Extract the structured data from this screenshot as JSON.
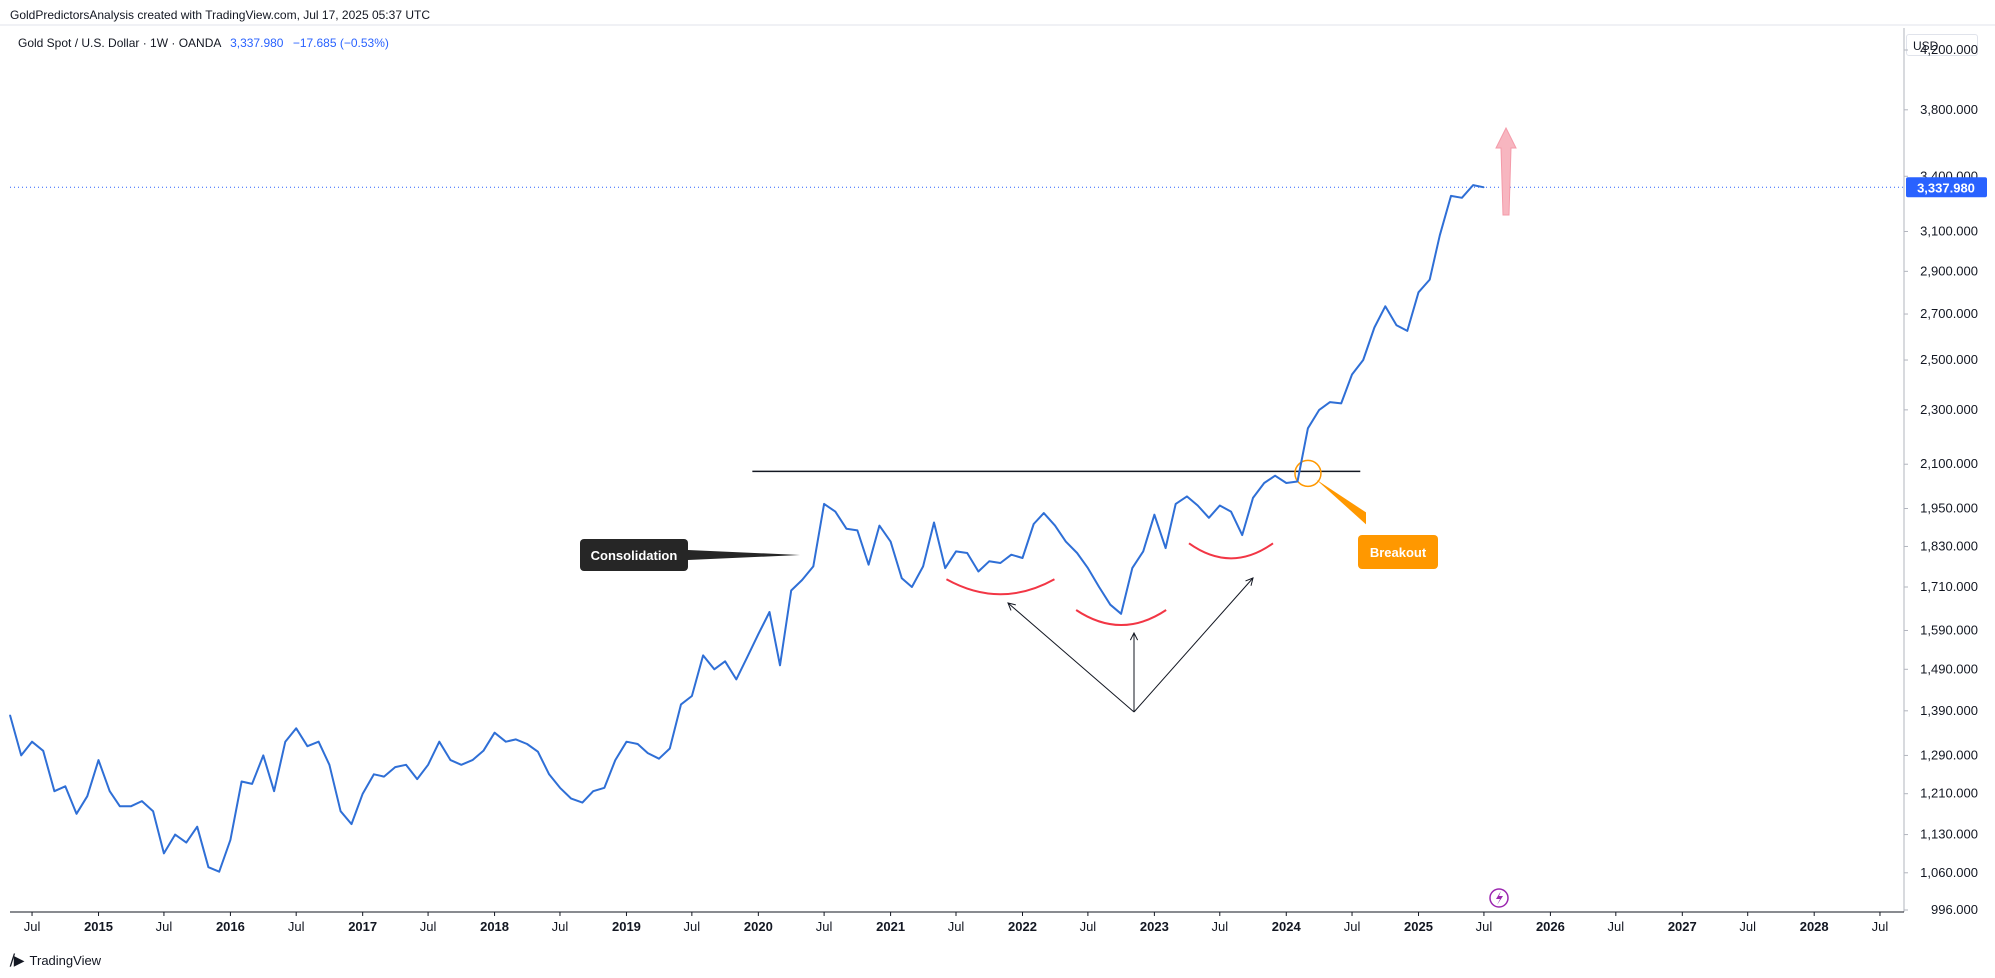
{
  "header": {
    "attribution": "GoldPredictorsAnalysis created with TradingView.com, Jul 17, 2025 05:37 UTC",
    "symbol": "Gold Spot / U.S. Dollar · 1W · OANDA",
    "last_price": "3,337.980",
    "change": "−17.685 (−0.53%)"
  },
  "currency_button": "USD",
  "footer": {
    "brand": "TradingView"
  },
  "colors": {
    "line": "#2f6fd6",
    "price_tag": "#2962ff",
    "arc": "#f23645",
    "breakout": "#ff9800",
    "label_bg": "#262626",
    "arrow_up": "#f7b6c0"
  },
  "annotations": {
    "consolidation": "Consolidation",
    "breakout": "Breakout"
  },
  "chart_data": {
    "type": "line",
    "title": "Gold Spot / U.S. Dollar · 1W · OANDA",
    "y_axis": {
      "scale": "log",
      "ticks": [
        996,
        1060,
        1130,
        1210,
        1290,
        1390,
        1490,
        1590,
        1710,
        1830,
        1950,
        2100,
        2300,
        2500,
        2700,
        2900,
        3100,
        3400,
        3800,
        4200
      ],
      "tick_labels": [
        "996.000",
        "1,060.000",
        "1,130.000",
        "1,210.000",
        "1,290.000",
        "1,390.000",
        "1,490.000",
        "1,590.000",
        "1,710.000",
        "1,830.000",
        "1,950.000",
        "2,100.000",
        "2,300.000",
        "2,500.000",
        "2,700.000",
        "2,900.000",
        "3,100.000",
        "3,400.000",
        "3,800.000",
        "4,200.000"
      ],
      "range": [
        996,
        4200
      ]
    },
    "x_axis": {
      "range": [
        "2014-05-01",
        "2028-08-31"
      ],
      "ticks": [
        {
          "date": "2014-07-01",
          "label": "Jul",
          "bold": false
        },
        {
          "date": "2015-01-01",
          "label": "2015",
          "bold": true
        },
        {
          "date": "2015-07-01",
          "label": "Jul",
          "bold": false
        },
        {
          "date": "2016-01-01",
          "label": "2016",
          "bold": true
        },
        {
          "date": "2016-07-01",
          "label": "Jul",
          "bold": false
        },
        {
          "date": "2017-01-01",
          "label": "2017",
          "bold": true
        },
        {
          "date": "2017-07-01",
          "label": "Jul",
          "bold": false
        },
        {
          "date": "2018-01-01",
          "label": "2018",
          "bold": true
        },
        {
          "date": "2018-07-01",
          "label": "Jul",
          "bold": false
        },
        {
          "date": "2019-01-01",
          "label": "2019",
          "bold": true
        },
        {
          "date": "2019-07-01",
          "label": "Jul",
          "bold": false
        },
        {
          "date": "2020-01-01",
          "label": "2020",
          "bold": true
        },
        {
          "date": "2020-07-01",
          "label": "Jul",
          "bold": false
        },
        {
          "date": "2021-01-01",
          "label": "2021",
          "bold": true
        },
        {
          "date": "2021-07-01",
          "label": "Jul",
          "bold": false
        },
        {
          "date": "2022-01-01",
          "label": "2022",
          "bold": true
        },
        {
          "date": "2022-07-01",
          "label": "Jul",
          "bold": false
        },
        {
          "date": "2023-01-01",
          "label": "2023",
          "bold": true
        },
        {
          "date": "2023-07-01",
          "label": "Jul",
          "bold": false
        },
        {
          "date": "2024-01-01",
          "label": "2024",
          "bold": true
        },
        {
          "date": "2024-07-01",
          "label": "Jul",
          "bold": false
        },
        {
          "date": "2025-01-01",
          "label": "2025",
          "bold": true
        },
        {
          "date": "2025-07-01",
          "label": "Jul",
          "bold": false
        },
        {
          "date": "2026-01-01",
          "label": "2026",
          "bold": true
        },
        {
          "date": "2026-07-01",
          "label": "Jul",
          "bold": false
        },
        {
          "date": "2027-01-01",
          "label": "2027",
          "bold": true
        },
        {
          "date": "2027-07-01",
          "label": "Jul",
          "bold": false
        },
        {
          "date": "2028-01-01",
          "label": "2028",
          "bold": true
        },
        {
          "date": "2028-07-01",
          "label": "Jul",
          "bold": false
        }
      ]
    },
    "series": [
      {
        "values": [
          [
            "2014-05-01",
            1380
          ],
          [
            "2014-06-01",
            1290
          ],
          [
            "2014-07-01",
            1320
          ],
          [
            "2014-08-01",
            1300
          ],
          [
            "2014-09-01",
            1215
          ],
          [
            "2014-10-01",
            1225
          ],
          [
            "2014-11-01",
            1170
          ],
          [
            "2014-12-01",
            1205
          ],
          [
            "2015-01-01",
            1280
          ],
          [
            "2015-02-01",
            1215
          ],
          [
            "2015-03-01",
            1185
          ],
          [
            "2015-04-01",
            1185
          ],
          [
            "2015-05-01",
            1195
          ],
          [
            "2015-06-01",
            1175
          ],
          [
            "2015-07-01",
            1095
          ],
          [
            "2015-08-01",
            1130
          ],
          [
            "2015-09-01",
            1115
          ],
          [
            "2015-10-01",
            1145
          ],
          [
            "2015-11-01",
            1070
          ],
          [
            "2015-12-01",
            1062
          ],
          [
            "2016-01-01",
            1120
          ],
          [
            "2016-02-01",
            1235
          ],
          [
            "2016-03-01",
            1230
          ],
          [
            "2016-04-01",
            1290
          ],
          [
            "2016-05-01",
            1215
          ],
          [
            "2016-06-01",
            1320
          ],
          [
            "2016-07-01",
            1350
          ],
          [
            "2016-08-01",
            1310
          ],
          [
            "2016-09-01",
            1320
          ],
          [
            "2016-10-01",
            1270
          ],
          [
            "2016-11-01",
            1175
          ],
          [
            "2016-12-01",
            1150
          ],
          [
            "2017-01-01",
            1210
          ],
          [
            "2017-02-01",
            1250
          ],
          [
            "2017-03-01",
            1245
          ],
          [
            "2017-04-01",
            1265
          ],
          [
            "2017-05-01",
            1270
          ],
          [
            "2017-06-01",
            1240
          ],
          [
            "2017-07-01",
            1270
          ],
          [
            "2017-08-01",
            1320
          ],
          [
            "2017-09-01",
            1280
          ],
          [
            "2017-10-01",
            1270
          ],
          [
            "2017-11-01",
            1280
          ],
          [
            "2017-12-01",
            1300
          ],
          [
            "2018-01-01",
            1340
          ],
          [
            "2018-02-01",
            1320
          ],
          [
            "2018-03-01",
            1325
          ],
          [
            "2018-04-01",
            1315
          ],
          [
            "2018-05-01",
            1298
          ],
          [
            "2018-06-01",
            1250
          ],
          [
            "2018-07-01",
            1222
          ],
          [
            "2018-08-01",
            1200
          ],
          [
            "2018-09-01",
            1192
          ],
          [
            "2018-10-01",
            1215
          ],
          [
            "2018-11-01",
            1222
          ],
          [
            "2018-12-01",
            1280
          ],
          [
            "2019-01-01",
            1320
          ],
          [
            "2019-02-01",
            1315
          ],
          [
            "2019-03-01",
            1295
          ],
          [
            "2019-04-01",
            1283
          ],
          [
            "2019-05-01",
            1305
          ],
          [
            "2019-06-01",
            1405
          ],
          [
            "2019-07-01",
            1425
          ],
          [
            "2019-08-01",
            1525
          ],
          [
            "2019-09-01",
            1490
          ],
          [
            "2019-10-01",
            1510
          ],
          [
            "2019-11-01",
            1465
          ],
          [
            "2019-12-01",
            1520
          ],
          [
            "2020-01-01",
            1580
          ],
          [
            "2020-02-01",
            1640
          ],
          [
            "2020-03-01",
            1500
          ],
          [
            "2020-04-01",
            1700
          ],
          [
            "2020-05-01",
            1730
          ],
          [
            "2020-06-01",
            1770
          ],
          [
            "2020-07-01",
            1965
          ],
          [
            "2020-08-01",
            1940
          ],
          [
            "2020-09-01",
            1885
          ],
          [
            "2020-10-01",
            1880
          ],
          [
            "2020-11-01",
            1775
          ],
          [
            "2020-12-01",
            1895
          ],
          [
            "2021-01-01",
            1845
          ],
          [
            "2021-02-01",
            1735
          ],
          [
            "2021-03-01",
            1710
          ],
          [
            "2021-04-01",
            1770
          ],
          [
            "2021-05-01",
            1905
          ],
          [
            "2021-06-01",
            1765
          ],
          [
            "2021-07-01",
            1815
          ],
          [
            "2021-08-01",
            1810
          ],
          [
            "2021-09-01",
            1755
          ],
          [
            "2021-10-01",
            1785
          ],
          [
            "2021-11-01",
            1780
          ],
          [
            "2021-12-01",
            1805
          ],
          [
            "2022-01-01",
            1795
          ],
          [
            "2022-02-01",
            1900
          ],
          [
            "2022-03-01",
            1935
          ],
          [
            "2022-04-01",
            1895
          ],
          [
            "2022-05-01",
            1845
          ],
          [
            "2022-06-01",
            1810
          ],
          [
            "2022-07-01",
            1765
          ],
          [
            "2022-08-01",
            1710
          ],
          [
            "2022-09-01",
            1660
          ],
          [
            "2022-10-01",
            1635
          ],
          [
            "2022-11-01",
            1765
          ],
          [
            "2022-12-01",
            1815
          ],
          [
            "2023-01-01",
            1930
          ],
          [
            "2023-02-01",
            1825
          ],
          [
            "2023-03-01",
            1965
          ],
          [
            "2023-04-01",
            1990
          ],
          [
            "2023-05-01",
            1960
          ],
          [
            "2023-06-01",
            1920
          ],
          [
            "2023-07-01",
            1960
          ],
          [
            "2023-08-01",
            1940
          ],
          [
            "2023-09-01",
            1865
          ],
          [
            "2023-10-01",
            1985
          ],
          [
            "2023-11-01",
            2035
          ],
          [
            "2023-12-01",
            2060
          ],
          [
            "2024-01-01",
            2035
          ],
          [
            "2024-02-01",
            2040
          ],
          [
            "2024-03-01",
            2230
          ],
          [
            "2024-04-01",
            2300
          ],
          [
            "2024-05-01",
            2330
          ],
          [
            "2024-06-01",
            2325
          ],
          [
            "2024-07-01",
            2440
          ],
          [
            "2024-08-01",
            2500
          ],
          [
            "2024-09-01",
            2640
          ],
          [
            "2024-10-01",
            2735
          ],
          [
            "2024-11-01",
            2650
          ],
          [
            "2024-12-01",
            2625
          ],
          [
            "2025-01-01",
            2800
          ],
          [
            "2025-02-01",
            2860
          ],
          [
            "2025-03-01",
            3080
          ],
          [
            "2025-04-01",
            3290
          ],
          [
            "2025-05-01",
            3280
          ],
          [
            "2025-06-01",
            3350
          ],
          [
            "2025-07-01",
            3337.98
          ]
        ]
      }
    ],
    "resistance_level": 2075,
    "last_value": 3337.98
  }
}
